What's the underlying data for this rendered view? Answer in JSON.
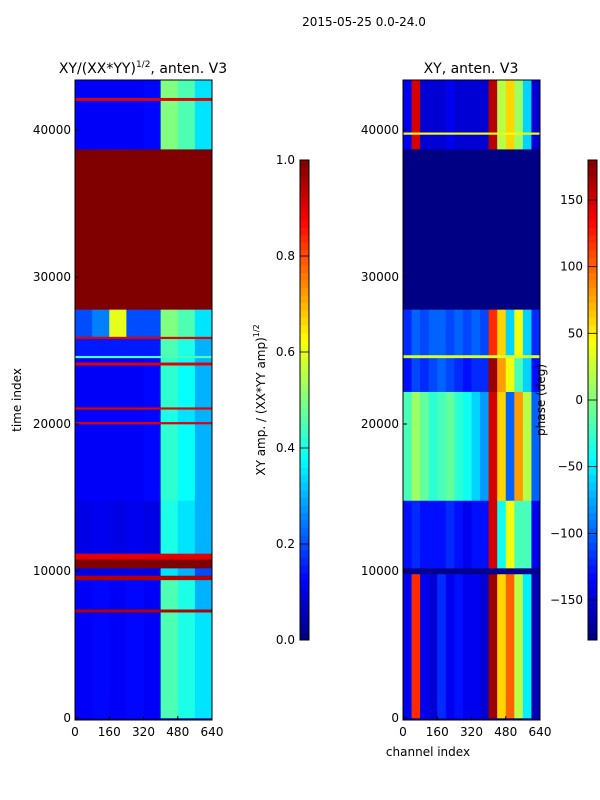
{
  "suptitle": "2015-05-25 0.0-24.0",
  "chart_data": [
    {
      "type": "heatmap",
      "title_main": "XY/(XX*YY)",
      "title_sup": "1/2",
      "title_rest": ", anten. V3",
      "xlabel": "",
      "ylabel": "time index",
      "xlim": [
        0,
        640
      ],
      "ylim": [
        0,
        43500
      ],
      "xticks": [
        "0",
        "160",
        "320",
        "480",
        "640"
      ],
      "xtick_values": [
        0,
        160,
        320,
        480,
        640
      ],
      "yticks": [
        "0",
        "10000",
        "20000",
        "30000",
        "40000"
      ],
      "ytick_values": [
        0,
        10000,
        20000,
        30000,
        40000
      ],
      "colorbar": {
        "label_main": "XY amp. / (XX*YY amp)",
        "label_sup": "1/2",
        "range": [
          0,
          1
        ],
        "ticks": [
          "0.0",
          "0.2",
          "0.4",
          "0.6",
          "0.8",
          "1.0"
        ],
        "tick_values": [
          0,
          0.2,
          0.4,
          0.6,
          0.8,
          1.0
        ]
      },
      "channel_blocks": 8,
      "rows": [
        {
          "t": [
            0,
            7200
          ],
          "v": [
            0.12,
            0.13,
            0.12,
            0.13,
            0.12,
            0.45,
            0.4,
            0.35
          ]
        },
        {
          "t": [
            7200,
            7400
          ],
          "v": [
            0.95,
            0.95,
            0.95,
            0.95,
            0.95,
            0.95,
            0.95,
            0.95
          ]
        },
        {
          "t": [
            7400,
            9400
          ],
          "v": [
            0.12,
            0.13,
            0.12,
            0.13,
            0.12,
            0.45,
            0.4,
            0.3
          ]
        },
        {
          "t": [
            9400,
            9700
          ],
          "v": [
            0.95,
            0.95,
            0.95,
            0.95,
            0.95,
            0.95,
            0.95,
            0.95
          ]
        },
        {
          "t": [
            9700,
            10200
          ],
          "v": [
            0.1,
            0.1,
            0.1,
            0.1,
            0.1,
            0.35,
            0.3,
            0.2
          ]
        },
        {
          "t": [
            10200,
            10800
          ],
          "v": [
            1,
            1,
            1,
            1,
            1,
            1,
            1,
            1
          ]
        },
        {
          "t": [
            10800,
            11200
          ],
          "v": [
            0.9,
            0.9,
            0.9,
            0.9,
            0.9,
            0.9,
            0.9,
            0.9
          ]
        },
        {
          "t": [
            11200,
            14800
          ],
          "v": [
            0.1,
            0.11,
            0.1,
            0.11,
            0.1,
            0.4,
            0.35,
            0.3
          ]
        },
        {
          "t": [
            14800,
            20000
          ],
          "v": [
            0.12,
            0.12,
            0.12,
            0.12,
            0.13,
            0.42,
            0.38,
            0.3
          ]
        },
        {
          "t": [
            20000,
            20150
          ],
          "v": [
            0.9,
            0.9,
            0.9,
            0.9,
            0.9,
            0.9,
            0.9,
            0.9
          ]
        },
        {
          "t": [
            20150,
            21000
          ],
          "v": [
            0.12,
            0.12,
            0.12,
            0.12,
            0.13,
            0.4,
            0.35,
            0.3
          ]
        },
        {
          "t": [
            21000,
            21150
          ],
          "v": [
            0.9,
            0.9,
            0.9,
            0.9,
            0.9,
            0.9,
            0.9,
            0.9
          ]
        },
        {
          "t": [
            21150,
            24000
          ],
          "v": [
            0.12,
            0.12,
            0.12,
            0.12,
            0.13,
            0.42,
            0.38,
            0.3
          ]
        },
        {
          "t": [
            24000,
            24200
          ],
          "v": [
            0.9,
            0.9,
            0.9,
            0.9,
            0.9,
            0.9,
            0.9,
            0.9
          ]
        },
        {
          "t": [
            24200,
            24500
          ],
          "v": [
            0.12,
            0.12,
            0.12,
            0.12,
            0.13,
            0.42,
            0.38,
            0.3
          ]
        },
        {
          "t": [
            24500,
            24650
          ],
          "v": [
            0.45,
            0.45,
            0.45,
            0.45,
            0.45,
            0.45,
            0.45,
            0.45
          ]
        },
        {
          "t": [
            24650,
            25800
          ],
          "v": [
            0.15,
            0.15,
            0.15,
            0.15,
            0.15,
            0.45,
            0.4,
            0.3
          ]
        },
        {
          "t": [
            25800,
            25950
          ],
          "v": [
            0.9,
            0.9,
            0.9,
            0.9,
            0.9,
            0.9,
            0.9,
            0.9
          ]
        },
        {
          "t": [
            25950,
            27800
          ],
          "v": [
            0.2,
            0.25,
            0.6,
            0.2,
            0.2,
            0.5,
            0.45,
            0.35
          ]
        },
        {
          "t": [
            27800,
            38700
          ],
          "v": [
            1,
            1,
            1,
            1,
            1,
            1,
            1,
            1
          ]
        },
        {
          "t": [
            38700,
            42000
          ],
          "v": [
            0.12,
            0.12,
            0.12,
            0.12,
            0.13,
            0.5,
            0.45,
            0.35
          ]
        },
        {
          "t": [
            42000,
            42200
          ],
          "v": [
            0.9,
            0.9,
            0.9,
            0.9,
            0.9,
            0.9,
            0.9,
            0.9
          ]
        },
        {
          "t": [
            42200,
            43500
          ],
          "v": [
            0.12,
            0.12,
            0.12,
            0.12,
            0.13,
            0.5,
            0.45,
            0.35
          ]
        }
      ]
    },
    {
      "type": "heatmap",
      "title_main": "XY, anten. V3",
      "xlabel": "channel index",
      "ylabel": "",
      "xlim": [
        0,
        640
      ],
      "ylim": [
        0,
        43500
      ],
      "xticks": [
        "0",
        "160",
        "320",
        "480",
        "640"
      ],
      "xtick_values": [
        0,
        160,
        320,
        480,
        640
      ],
      "yticks": [
        "0",
        "10000",
        "20000",
        "30000",
        "40000"
      ],
      "ytick_values": [
        0,
        10000,
        20000,
        30000,
        40000
      ],
      "colorbar": {
        "label_main": "phase (deg)",
        "range": [
          -180,
          180
        ],
        "ticks": [
          "−150",
          "−100",
          "−50",
          "0",
          "50",
          "100",
          "150"
        ],
        "tick_values": [
          -150,
          -100,
          -50,
          0,
          50,
          100,
          150
        ]
      },
      "channel_blocks": 16,
      "rows": [
        {
          "t": [
            0,
            9800
          ],
          "v": [
            -140,
            120,
            -140,
            -150,
            -120,
            -140,
            -130,
            -140,
            -140,
            -150,
            170,
            60,
            100,
            20,
            -50,
            -160
          ]
        },
        {
          "t": [
            9800,
            10200
          ],
          "v": [
            -175,
            -175,
            -175,
            -175,
            -175,
            -175,
            -175,
            -175,
            -175,
            -175,
            -175,
            -175,
            -175,
            -175,
            -175,
            -175
          ]
        },
        {
          "t": [
            10200,
            14800
          ],
          "v": [
            -130,
            -120,
            -130,
            -130,
            -130,
            -120,
            -130,
            -140,
            -130,
            -130,
            150,
            -40,
            40,
            -20,
            -20,
            -140
          ]
        },
        {
          "t": [
            14800,
            22200
          ],
          "v": [
            -20,
            10,
            -10,
            -30,
            -20,
            -10,
            -30,
            -40,
            -60,
            -80,
            150,
            60,
            -100,
            80,
            20,
            -100
          ]
        },
        {
          "t": [
            22200,
            24500
          ],
          "v": [
            -130,
            -110,
            -120,
            -110,
            -100,
            -110,
            -120,
            -130,
            -120,
            -120,
            170,
            80,
            40,
            -20,
            -60,
            -130
          ]
        },
        {
          "t": [
            24500,
            24700
          ],
          "v": [
            30,
            30,
            30,
            30,
            30,
            30,
            30,
            30,
            30,
            30,
            30,
            30,
            30,
            30,
            30,
            30
          ]
        },
        {
          "t": [
            24700,
            27800
          ],
          "v": [
            -120,
            -100,
            -110,
            -100,
            -100,
            -110,
            -100,
            -110,
            -100,
            -110,
            120,
            60,
            -60,
            40,
            -60,
            -120
          ]
        },
        {
          "t": [
            27800,
            38700
          ],
          "v": [
            -178,
            -178,
            -178,
            -178,
            -178,
            -178,
            -178,
            -178,
            -178,
            -178,
            -178,
            -178,
            -178,
            -178,
            -178,
            -178
          ]
        },
        {
          "t": [
            38700,
            39700
          ],
          "v": [
            -140,
            150,
            -150,
            -150,
            -150,
            -140,
            -150,
            -150,
            -150,
            -150,
            160,
            20,
            60,
            10,
            -60,
            -150
          ]
        },
        {
          "t": [
            39700,
            39850
          ],
          "v": [
            40,
            40,
            40,
            40,
            40,
            40,
            40,
            40,
            40,
            40,
            40,
            40,
            40,
            40,
            40,
            40
          ]
        },
        {
          "t": [
            39850,
            43500
          ],
          "v": [
            -140,
            150,
            -150,
            -150,
            -150,
            -140,
            -150,
            -150,
            -150,
            -150,
            160,
            20,
            60,
            10,
            -60,
            -150
          ]
        }
      ]
    }
  ]
}
